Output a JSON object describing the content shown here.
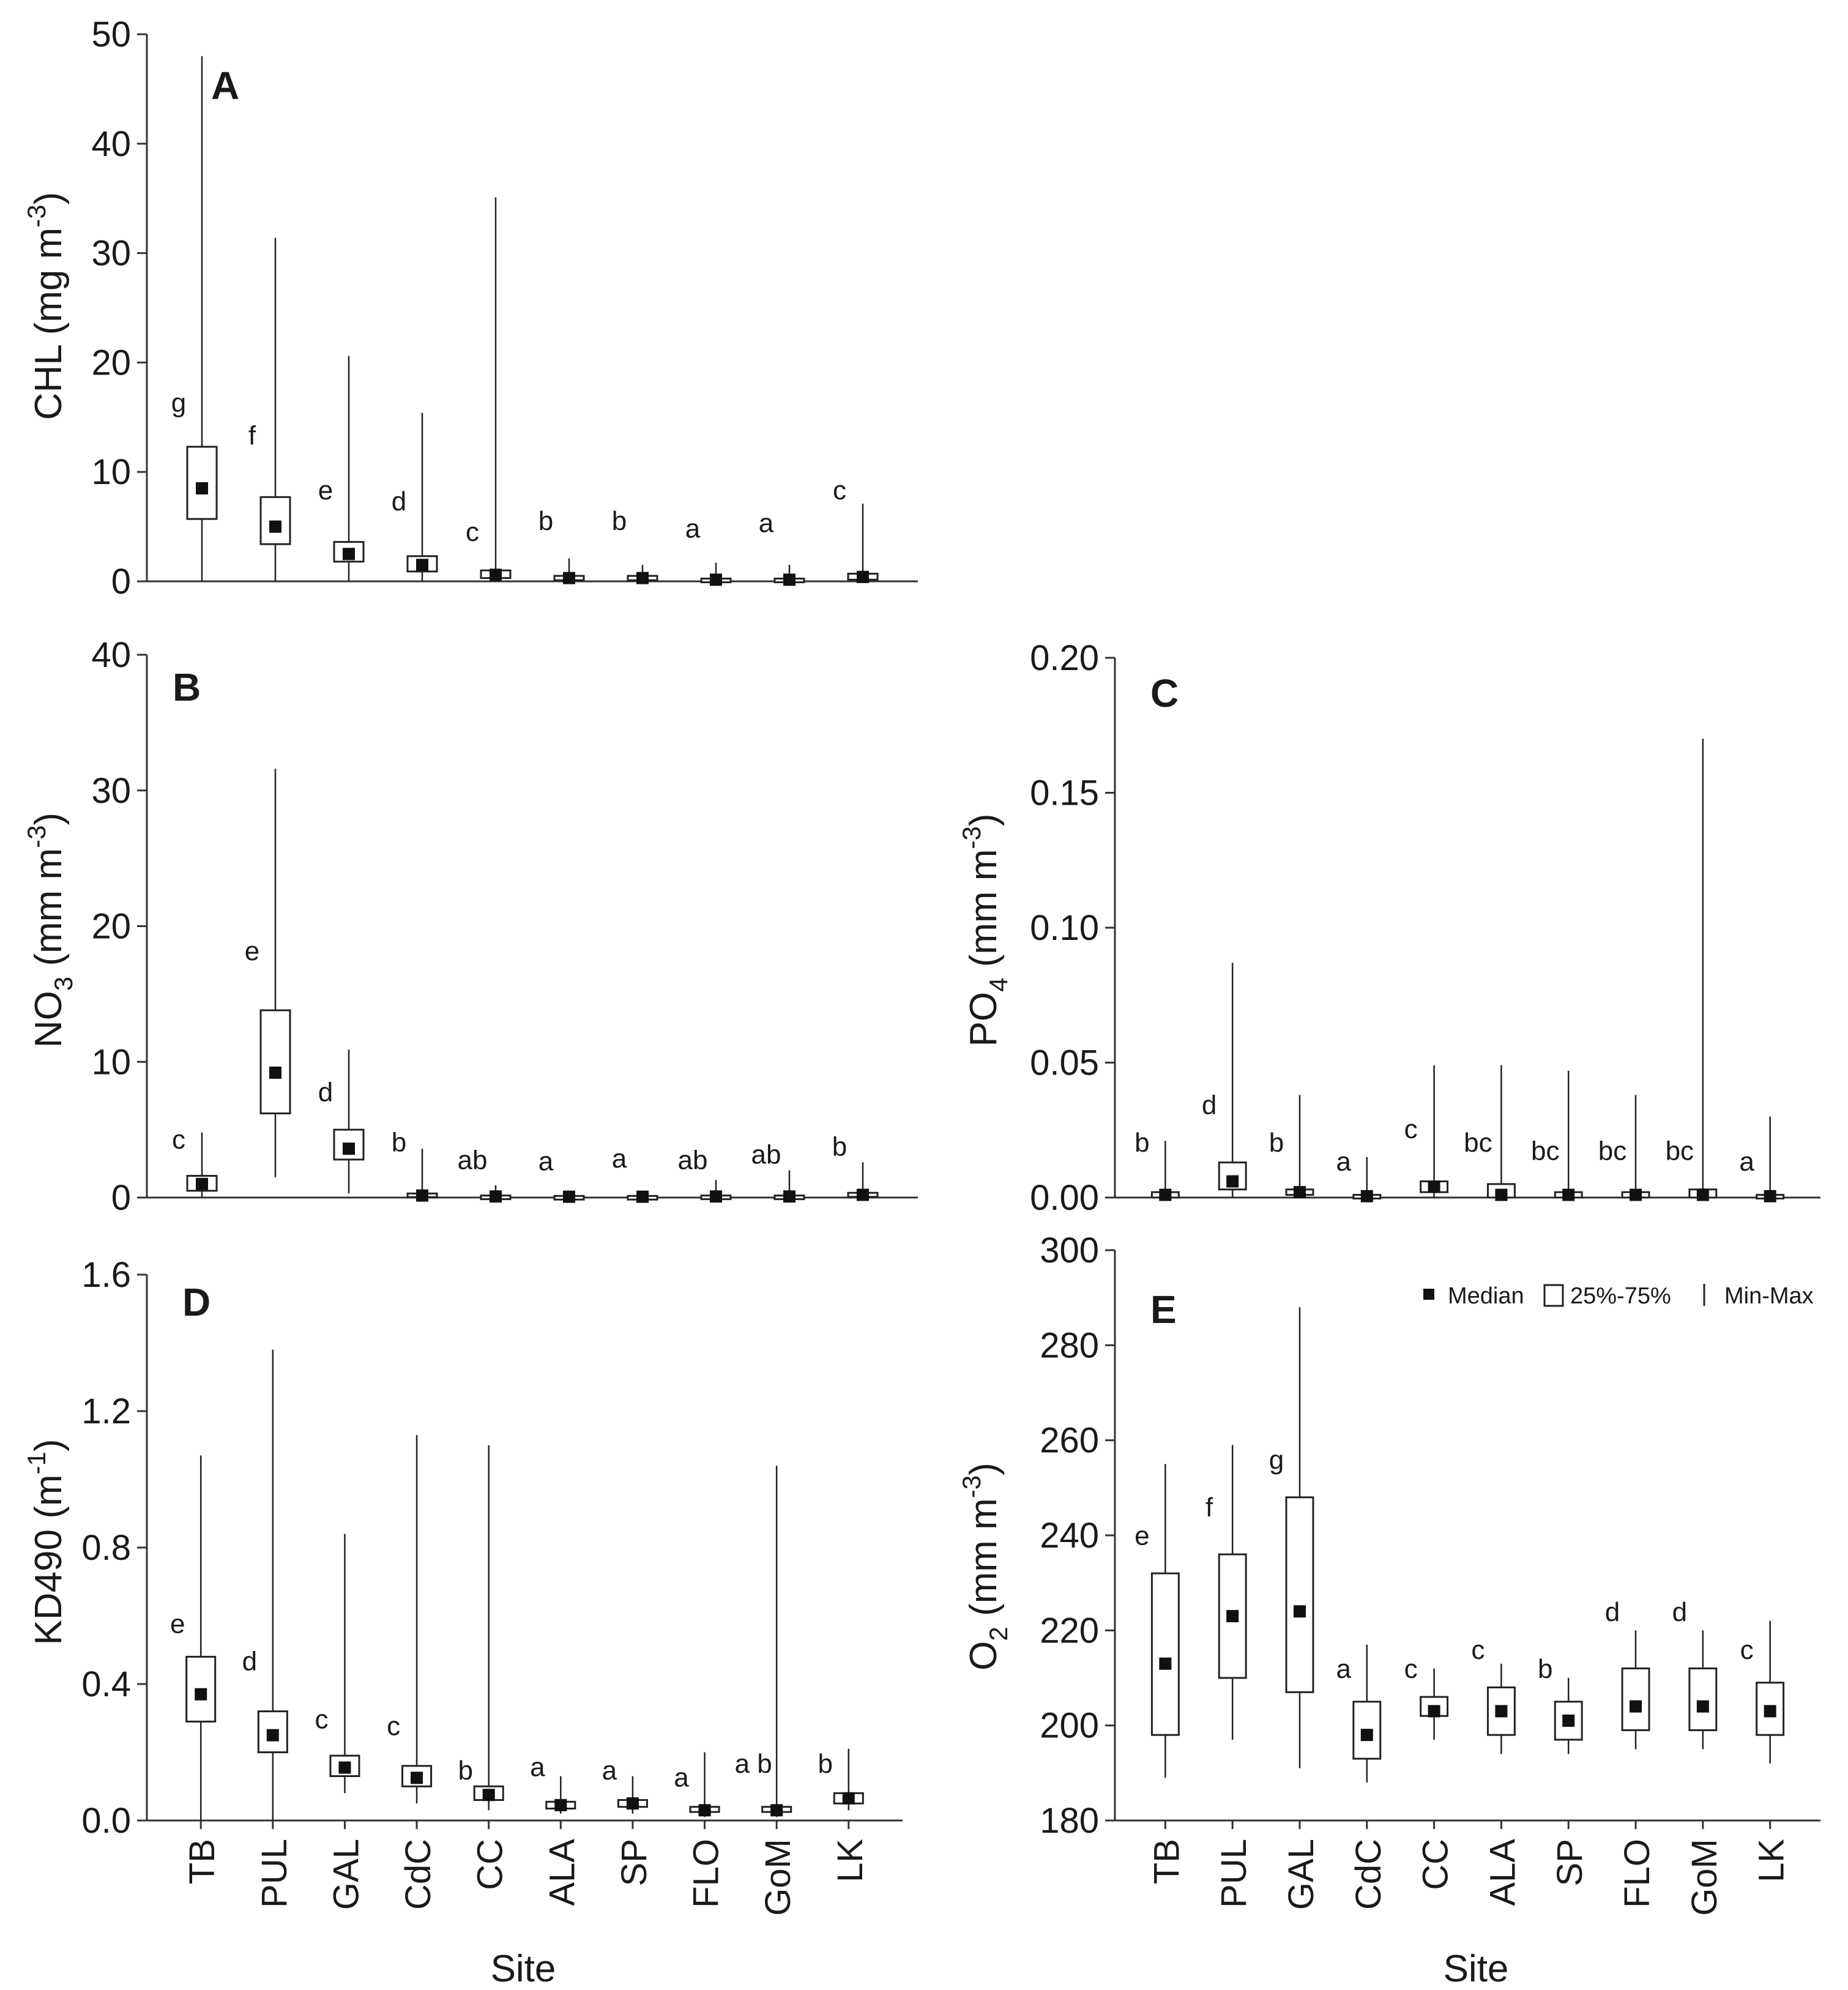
{
  "legend": {
    "median_label": "Median",
    "box_label": "25%-75%",
    "range_label": "Min-Max"
  },
  "x_axis_title": "Site",
  "chart_data": [
    {
      "id": "A",
      "type": "box",
      "panel_label": "A",
      "ylabel": "CHL (mg m",
      "ylabel_sup": "-3",
      "ylabel_tail": ")",
      "ylim": [
        0,
        50
      ],
      "yticks": [
        "0",
        "10",
        "20",
        "30",
        "40",
        "50"
      ],
      "ytick_values": [
        0,
        10,
        20,
        30,
        40,
        50
      ],
      "categories": [
        "TB",
        "PUL",
        "GAL",
        "CdC",
        "CC",
        "ALA",
        "SP",
        "FLO",
        "GoM",
        "LK"
      ],
      "show_xticks": false,
      "min": [
        0,
        0,
        0,
        0,
        0,
        0,
        0,
        0,
        0,
        0
      ],
      "q1": [
        5.7,
        3.4,
        1.8,
        0.9,
        0.3,
        0.1,
        0.1,
        0.05,
        0.05,
        0.15
      ],
      "median": [
        8.5,
        5.0,
        2.5,
        1.5,
        0.6,
        0.3,
        0.3,
        0.15,
        0.15,
        0.4
      ],
      "q3": [
        12.3,
        7.7,
        3.6,
        2.3,
        1.0,
        0.5,
        0.5,
        0.25,
        0.25,
        0.7
      ],
      "max": [
        48.0,
        31.4,
        20.6,
        15.4,
        35.1,
        2.1,
        1.5,
        1.7,
        1.5,
        7.1
      ],
      "letters": [
        "g",
        "f",
        "e",
        "d",
        "c",
        "b",
        "b",
        "a",
        "a",
        "c"
      ],
      "letter_y": [
        15.5,
        12.5,
        7.5,
        6.5,
        3.7,
        4.7,
        4.7,
        4.0,
        4.5,
        7.5
      ]
    },
    {
      "id": "B",
      "type": "box",
      "panel_label": "B",
      "ylabel": "NO",
      "ylabel_sub": "3",
      "ylabel_mid": " (mm m",
      "ylabel_sup": "-3",
      "ylabel_tail": ")",
      "ylim": [
        0,
        40
      ],
      "yticks": [
        "0",
        "10",
        "20",
        "30",
        "40"
      ],
      "ytick_values": [
        0,
        10,
        20,
        30,
        40
      ],
      "categories": [
        "TB",
        "PUL",
        "GAL",
        "CdC",
        "CC",
        "ALA",
        "SP",
        "FLO",
        "GoM",
        "LK"
      ],
      "show_xticks": false,
      "min": [
        0,
        1.5,
        0.3,
        0,
        0,
        0,
        0,
        0,
        0,
        0
      ],
      "q1": [
        0.5,
        6.2,
        2.8,
        0.05,
        0.02,
        0.02,
        0.02,
        0.02,
        0.02,
        0.05
      ],
      "median": [
        1.0,
        9.2,
        3.6,
        0.15,
        0.08,
        0.06,
        0.06,
        0.08,
        0.08,
        0.2
      ],
      "q3": [
        1.6,
        13.8,
        5.0,
        0.3,
        0.15,
        0.12,
        0.12,
        0.15,
        0.15,
        0.35
      ],
      "max": [
        4.8,
        31.6,
        10.9,
        3.6,
        0.9,
        0.3,
        0.3,
        1.3,
        2.0,
        2.6
      ],
      "letters": [
        "c",
        "e",
        "d",
        "b",
        "ab",
        "a",
        "a",
        "ab",
        "ab",
        "b"
      ],
      "letter_y": [
        3.6,
        17.5,
        7.1,
        3.4,
        2.1,
        2.0,
        2.2,
        2.1,
        2.5,
        3.1
      ]
    },
    {
      "id": "C",
      "type": "box",
      "panel_label": "C",
      "ylabel": "PO",
      "ylabel_sub": "4",
      "ylabel_mid": " (mm m",
      "ylabel_sup": "-3",
      "ylabel_tail": ")",
      "ylim": [
        0,
        0.2
      ],
      "yticks": [
        "0.00",
        "0.05",
        "0.10",
        "0.15",
        "0.20"
      ],
      "ytick_values": [
        0,
        0.05,
        0.1,
        0.15,
        0.2
      ],
      "categories": [
        "TB",
        "PUL",
        "GAL",
        "CdC",
        "CC",
        "ALA",
        "SP",
        "FLO",
        "GoM",
        "LK"
      ],
      "show_xticks": false,
      "min": [
        0,
        0,
        0,
        0,
        0,
        0,
        0,
        0,
        0,
        0
      ],
      "q1": [
        0.0,
        0.003,
        0.001,
        0.0,
        0.002,
        0.0,
        0.0,
        0.0,
        0.0,
        0.0
      ],
      "median": [
        0.001,
        0.006,
        0.002,
        0.0005,
        0.004,
        0.001,
        0.001,
        0.001,
        0.001,
        0.0005
      ],
      "q3": [
        0.002,
        0.013,
        0.003,
        0.001,
        0.006,
        0.005,
        0.002,
        0.002,
        0.003,
        0.001
      ],
      "max": [
        0.021,
        0.087,
        0.038,
        0.015,
        0.049,
        0.049,
        0.047,
        0.038,
        0.17,
        0.03
      ],
      "letters": [
        "b",
        "d",
        "b",
        "a",
        "c",
        "bc",
        "bc",
        "bc",
        "bc",
        "a"
      ],
      "letter_y": [
        0.017,
        0.031,
        0.017,
        0.01,
        0.022,
        0.017,
        0.014,
        0.014,
        0.014,
        0.01
      ]
    },
    {
      "id": "D",
      "type": "box",
      "panel_label": "D",
      "ylabel": "KD490 (m",
      "ylabel_sup": "-1",
      "ylabel_tail": ")",
      "ylim": [
        0,
        1.6
      ],
      "yticks": [
        "0.0",
        "0.4",
        "0.8",
        "1.2",
        "1.6"
      ],
      "ytick_values": [
        0,
        0.4,
        0.8,
        1.2,
        1.6
      ],
      "categories": [
        "TB",
        "PUL",
        "GAL",
        "CdC",
        "CC",
        "ALA",
        "SP",
        "FLO",
        "GoM",
        "LK"
      ],
      "show_xticks": true,
      "min": [
        0,
        0,
        0.08,
        0.05,
        0.03,
        0.02,
        0.02,
        0.01,
        0.01,
        0.03
      ],
      "q1": [
        0.29,
        0.2,
        0.13,
        0.1,
        0.06,
        0.035,
        0.04,
        0.025,
        0.025,
        0.05
      ],
      "median": [
        0.37,
        0.25,
        0.155,
        0.125,
        0.075,
        0.045,
        0.05,
        0.03,
        0.03,
        0.065
      ],
      "q3": [
        0.48,
        0.32,
        0.19,
        0.16,
        0.1,
        0.055,
        0.06,
        0.04,
        0.04,
        0.08
      ],
      "max": [
        1.07,
        1.38,
        0.84,
        1.13,
        1.1,
        0.13,
        0.13,
        0.2,
        1.04,
        0.21
      ],
      "letters": [
        "e",
        "d",
        "c",
        "c",
        "b",
        "a",
        "a",
        "a",
        "a b",
        "b"
      ],
      "letter_y": [
        0.55,
        0.44,
        0.27,
        0.25,
        0.12,
        0.13,
        0.12,
        0.1,
        0.14,
        0.14
      ]
    },
    {
      "id": "E",
      "type": "box",
      "panel_label": "E",
      "ylabel": "O",
      "ylabel_sub": "2",
      "ylabel_mid": " (mm m",
      "ylabel_sup": "-3",
      "ylabel_tail": ")",
      "ylim": [
        180,
        300
      ],
      "yticks": [
        "180",
        "200",
        "220",
        "240",
        "260",
        "280",
        "300"
      ],
      "ytick_values": [
        180,
        200,
        220,
        240,
        260,
        280,
        300
      ],
      "categories": [
        "TB",
        "PUL",
        "GAL",
        "CdC",
        "CC",
        "ALA",
        "SP",
        "FLO",
        "GoM",
        "LK"
      ],
      "show_xticks": true,
      "min": [
        189,
        197,
        191,
        188,
        197,
        194,
        194,
        195,
        195,
        192
      ],
      "q1": [
        198,
        210,
        207,
        193,
        202,
        198,
        197,
        199,
        199,
        198
      ],
      "median": [
        213,
        223,
        224,
        198,
        203,
        203,
        201,
        204,
        204,
        203
      ],
      "q3": [
        232,
        236,
        248,
        205,
        206,
        208,
        205,
        212,
        212,
        209
      ],
      "max": [
        255,
        259,
        288,
        217,
        212,
        213,
        210,
        220,
        220,
        222
      ],
      "letters": [
        "e",
        "f",
        "g",
        "a",
        "c",
        "c",
        "b",
        "d",
        "d",
        "c"
      ],
      "letter_y": [
        238,
        244,
        254,
        210,
        210,
        214,
        210,
        222,
        222,
        214
      ]
    }
  ]
}
